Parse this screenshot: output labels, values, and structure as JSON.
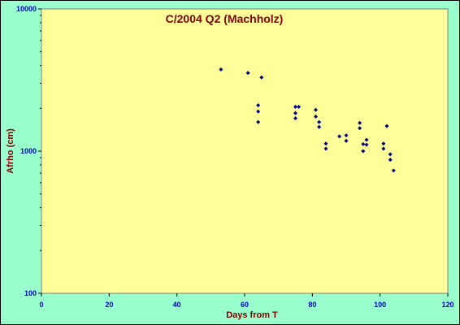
{
  "chart_data": {
    "type": "scatter",
    "title": "C/2004 Q2 (Machholz)",
    "xlabel": "Days from T",
    "ylabel": "Afrho (cm)",
    "xlim": [
      0,
      120
    ],
    "ylim": [
      100,
      10000
    ],
    "y_scale": "log",
    "x_ticks": [
      "0",
      "20",
      "40",
      "60",
      "80",
      "100",
      "120"
    ],
    "y_ticks": [
      "100",
      "1000",
      "10000"
    ],
    "grid": false,
    "legend": "none",
    "colors": {
      "background": "#99ffcc",
      "plot_area": "#ffff99",
      "points": "#000080",
      "title": "#800000",
      "tick_labels": "#0000cc"
    },
    "points": [
      {
        "x": 53,
        "y": 3750
      },
      {
        "x": 61,
        "y": 3550
      },
      {
        "x": 64,
        "y": 2100
      },
      {
        "x": 64,
        "y": 1900
      },
      {
        "x": 64,
        "y": 1600
      },
      {
        "x": 65,
        "y": 3300
      },
      {
        "x": 75,
        "y": 2050
      },
      {
        "x": 75,
        "y": 1850
      },
      {
        "x": 75,
        "y": 1700
      },
      {
        "x": 76,
        "y": 2050
      },
      {
        "x": 81,
        "y": 1950
      },
      {
        "x": 81,
        "y": 1750
      },
      {
        "x": 82,
        "y": 1600
      },
      {
        "x": 82,
        "y": 1480
      },
      {
        "x": 84,
        "y": 1130
      },
      {
        "x": 84,
        "y": 1040
      },
      {
        "x": 88,
        "y": 1270
      },
      {
        "x": 90,
        "y": 1290
      },
      {
        "x": 90,
        "y": 1180
      },
      {
        "x": 94,
        "y": 1580
      },
      {
        "x": 94,
        "y": 1450
      },
      {
        "x": 95,
        "y": 1120
      },
      {
        "x": 95,
        "y": 1000
      },
      {
        "x": 96,
        "y": 1200
      },
      {
        "x": 96,
        "y": 1110
      },
      {
        "x": 101,
        "y": 1130
      },
      {
        "x": 101,
        "y": 1040
      },
      {
        "x": 102,
        "y": 1500
      },
      {
        "x": 103,
        "y": 950
      },
      {
        "x": 103,
        "y": 870
      },
      {
        "x": 104,
        "y": 730
      }
    ]
  }
}
